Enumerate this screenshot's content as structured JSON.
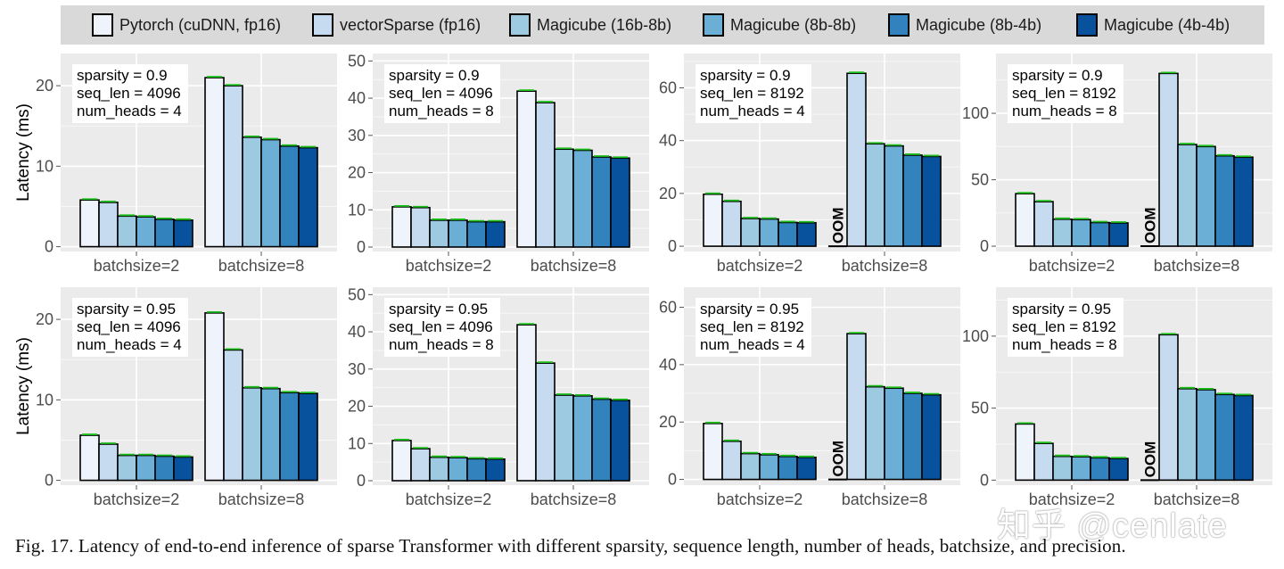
{
  "legend": {
    "items": [
      {
        "label": "Pytorch (cuDNN, fp16)",
        "color": "#eff3fb"
      },
      {
        "label": "vectorSparse (fp16)",
        "color": "#c6dbef"
      },
      {
        "label": "Magicube (16b-8b)",
        "color": "#9ecae1"
      },
      {
        "label": "Magicube (8b-8b)",
        "color": "#6baed6"
      },
      {
        "label": "Magicube (8b-4b)",
        "color": "#3182bd"
      },
      {
        "label": "Magicube (4b-4b)",
        "color": "#08519c"
      }
    ]
  },
  "y_axis_label": "Latency (ms)",
  "chart_data": [
    {
      "type": "bar",
      "annotation": [
        "sparsity = 0.9",
        "seq_len = 4096",
        "num_heads = 4"
      ],
      "categories": [
        "batchsize=2",
        "batchsize=8"
      ],
      "ylim": [
        -0.6,
        24
      ],
      "yticks": [
        0,
        10,
        20
      ],
      "series": [
        {
          "name": "Pytorch (cuDNN, fp16)",
          "values": [
            5.8,
            21.0
          ]
        },
        {
          "name": "vectorSparse (fp16)",
          "values": [
            5.5,
            20.0
          ]
        },
        {
          "name": "Magicube (16b-8b)",
          "values": [
            3.8,
            13.6
          ]
        },
        {
          "name": "Magicube (8b-8b)",
          "values": [
            3.7,
            13.3
          ]
        },
        {
          "name": "Magicube (8b-4b)",
          "values": [
            3.4,
            12.5
          ]
        },
        {
          "name": "Magicube (4b-4b)",
          "values": [
            3.3,
            12.3
          ]
        }
      ]
    },
    {
      "type": "bar",
      "annotation": [
        "sparsity = 0.9",
        "seq_len = 4096",
        "num_heads = 8"
      ],
      "categories": [
        "batchsize=2",
        "batchsize=8"
      ],
      "ylim": [
        -1.2,
        52
      ],
      "yticks": [
        0,
        10,
        20,
        30,
        40,
        50
      ],
      "series": [
        {
          "name": "Pytorch (cuDNN, fp16)",
          "values": [
            10.8,
            41.9
          ]
        },
        {
          "name": "vectorSparse (fp16)",
          "values": [
            10.6,
            38.8
          ]
        },
        {
          "name": "Magicube (16b-8b)",
          "values": [
            7.2,
            26.3
          ]
        },
        {
          "name": "Magicube (8b-8b)",
          "values": [
            7.2,
            26.0
          ]
        },
        {
          "name": "Magicube (8b-4b)",
          "values": [
            6.8,
            24.2
          ]
        },
        {
          "name": "Magicube (4b-4b)",
          "values": [
            6.8,
            23.9
          ]
        }
      ]
    },
    {
      "type": "bar",
      "annotation": [
        "sparsity = 0.9",
        "seq_len = 8192",
        "num_heads = 4"
      ],
      "categories": [
        "batchsize=2",
        "batchsize=8"
      ],
      "ylim": [
        -2,
        73
      ],
      "yticks": [
        0,
        20,
        40,
        60
      ],
      "oom_label": "OOM",
      "series": [
        {
          "name": "Pytorch (cuDNN, fp16)",
          "values": [
            19.7,
            null
          ]
        },
        {
          "name": "vectorSparse (fp16)",
          "values": [
            17.0,
            65.5
          ]
        },
        {
          "name": "Magicube (16b-8b)",
          "values": [
            10.5,
            38.8
          ]
        },
        {
          "name": "Magicube (8b-8b)",
          "values": [
            10.3,
            38.0
          ]
        },
        {
          "name": "Magicube (8b-4b)",
          "values": [
            9.0,
            34.5
          ]
        },
        {
          "name": "Magicube (4b-4b)",
          "values": [
            8.9,
            34.0
          ]
        }
      ]
    },
    {
      "type": "bar",
      "annotation": [
        "sparsity = 0.9",
        "seq_len = 8192",
        "num_heads = 8"
      ],
      "categories": [
        "batchsize=2",
        "batchsize=8"
      ],
      "ylim": [
        -4,
        145
      ],
      "yticks": [
        0,
        50,
        100
      ],
      "oom_label": "OOM",
      "series": [
        {
          "name": "Pytorch (cuDNN, fp16)",
          "values": [
            39.5,
            null
          ]
        },
        {
          "name": "vectorSparse (fp16)",
          "values": [
            33.5,
            130.0
          ]
        },
        {
          "name": "Magicube (16b-8b)",
          "values": [
            20.3,
            76.5
          ]
        },
        {
          "name": "Magicube (8b-8b)",
          "values": [
            20.0,
            75.0
          ]
        },
        {
          "name": "Magicube (8b-4b)",
          "values": [
            17.8,
            68.0
          ]
        },
        {
          "name": "Magicube (4b-4b)",
          "values": [
            17.5,
            67.0
          ]
        }
      ]
    },
    {
      "type": "bar",
      "annotation": [
        "sparsity = 0.95",
        "seq_len = 4096",
        "num_heads = 4"
      ],
      "categories": [
        "batchsize=2",
        "batchsize=8"
      ],
      "ylim": [
        -0.6,
        24
      ],
      "yticks": [
        0,
        10,
        20
      ],
      "series": [
        {
          "name": "Pytorch (cuDNN, fp16)",
          "values": [
            5.6,
            20.8
          ]
        },
        {
          "name": "vectorSparse (fp16)",
          "values": [
            4.5,
            16.2
          ]
        },
        {
          "name": "Magicube (16b-8b)",
          "values": [
            3.1,
            11.5
          ]
        },
        {
          "name": "Magicube (8b-8b)",
          "values": [
            3.1,
            11.4
          ]
        },
        {
          "name": "Magicube (8b-4b)",
          "values": [
            3.0,
            10.9
          ]
        },
        {
          "name": "Magicube (4b-4b)",
          "values": [
            2.9,
            10.8
          ]
        }
      ]
    },
    {
      "type": "bar",
      "annotation": [
        "sparsity = 0.95",
        "seq_len = 4096",
        "num_heads = 8"
      ],
      "categories": [
        "batchsize=2",
        "batchsize=8"
      ],
      "ylim": [
        -1.2,
        52
      ],
      "yticks": [
        0,
        10,
        20,
        30,
        40,
        50
      ],
      "series": [
        {
          "name": "Pytorch (cuDNN, fp16)",
          "values": [
            10.8,
            41.9
          ]
        },
        {
          "name": "vectorSparse (fp16)",
          "values": [
            8.6,
            31.6
          ]
        },
        {
          "name": "Magicube (16b-8b)",
          "values": [
            6.3,
            23.0
          ]
        },
        {
          "name": "Magicube (8b-8b)",
          "values": [
            6.2,
            22.8
          ]
        },
        {
          "name": "Magicube (8b-4b)",
          "values": [
            5.9,
            21.9
          ]
        },
        {
          "name": "Magicube (4b-4b)",
          "values": [
            5.8,
            21.6
          ]
        }
      ]
    },
    {
      "type": "bar",
      "annotation": [
        "sparsity = 0.95",
        "seq_len = 8192",
        "num_heads = 4"
      ],
      "categories": [
        "batchsize=2",
        "batchsize=8"
      ],
      "ylim": [
        -2,
        67
      ],
      "yticks": [
        0,
        20,
        40,
        60
      ],
      "oom_label": "OOM",
      "series": [
        {
          "name": "Pytorch (cuDNN, fp16)",
          "values": [
            19.5,
            null
          ]
        },
        {
          "name": "vectorSparse (fp16)",
          "values": [
            13.3,
            50.8
          ]
        },
        {
          "name": "Magicube (16b-8b)",
          "values": [
            9.0,
            32.3
          ]
        },
        {
          "name": "Magicube (8b-8b)",
          "values": [
            8.6,
            31.8
          ]
        },
        {
          "name": "Magicube (8b-4b)",
          "values": [
            8.0,
            30.0
          ]
        },
        {
          "name": "Magicube (4b-4b)",
          "values": [
            7.7,
            29.5
          ]
        }
      ]
    },
    {
      "type": "bar",
      "annotation": [
        "sparsity = 0.95",
        "seq_len = 8192",
        "num_heads = 8"
      ],
      "categories": [
        "batchsize=2",
        "batchsize=8"
      ],
      "ylim": [
        -3.5,
        134
      ],
      "yticks": [
        0,
        50,
        100
      ],
      "oom_label": "OOM",
      "series": [
        {
          "name": "Pytorch (cuDNN, fp16)",
          "values": [
            39.0,
            null
          ]
        },
        {
          "name": "vectorSparse (fp16)",
          "values": [
            25.5,
            101.0
          ]
        },
        {
          "name": "Magicube (16b-8b)",
          "values": [
            16.5,
            63.5
          ]
        },
        {
          "name": "Magicube (8b-8b)",
          "values": [
            16.2,
            62.8
          ]
        },
        {
          "name": "Magicube (8b-4b)",
          "values": [
            15.5,
            59.5
          ]
        },
        {
          "name": "Magicube (4b-4b)",
          "values": [
            15.0,
            58.8
          ]
        }
      ]
    }
  ],
  "caption": "Fig. 17.  Latency of end-to-end inference of sparse Transformer with different sparsity, sequence length, number of heads, batchsize, and precision.",
  "watermark": "知乎 @cenlate"
}
